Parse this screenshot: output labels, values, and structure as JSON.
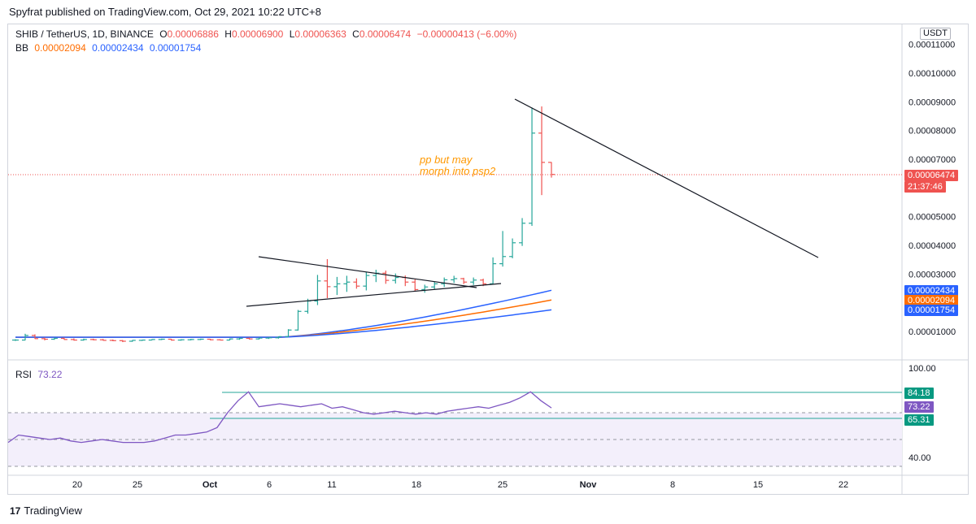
{
  "header": {
    "published": "Spyfrat published on TradingView.com, Oct 29, 2021 10:22 UTC+8"
  },
  "legend": {
    "symbol": "SHIB / TetherUS, 1D, BINANCE",
    "o_label": "O",
    "o_value": "0.00006886",
    "h_label": "H",
    "h_value": "0.00006900",
    "l_label": "L",
    "l_value": "0.00006363",
    "c_label": "C",
    "c_value": "0.00006474",
    "change": "−0.00000413 (−6.00%)",
    "bb_label": "BB",
    "bb_values": [
      "0.00002094",
      "0.00002434",
      "0.00001754"
    ]
  },
  "rsi_legend": {
    "label": "RSI",
    "value": "73.22"
  },
  "price_axis": {
    "currency": "USDT",
    "ticks": [
      "0.00011000",
      "0.00010000",
      "0.00009000",
      "0.00008000",
      "0.00007000",
      "0.00005000",
      "0.00004000",
      "0.00003000",
      "0.00001000"
    ],
    "last_price": "0.00006474",
    "countdown": "21:37:46",
    "bb_upper": "0.00002434",
    "bb_basis": "0.00002094",
    "bb_lower": "0.00001754"
  },
  "rsi_axis": {
    "ticks": [
      "100.00",
      "40.00"
    ],
    "labels": [
      "84.18",
      "73.22",
      "65.31"
    ]
  },
  "time_axis": [
    "20",
    "25",
    "Oct",
    "6",
    "11",
    "18",
    "25",
    "Nov",
    "8",
    "15",
    "22"
  ],
  "annotation": {
    "line1": "pp but may",
    "line2": "morph into psp2"
  },
  "footer": {
    "brand": "TradingView"
  },
  "colors": {
    "up": "#26a69a",
    "down": "#ef5350",
    "bb_basis": "#ff6d00",
    "bb_band": "#2962ff",
    "rsi": "#7e57c2",
    "annotation": "#ff9800",
    "price_line": "#ef5350"
  },
  "chart_data": {
    "type": "candlestick",
    "title": "SHIB / TetherUS, 1D, BINANCE",
    "timeframe": "1D",
    "approx_dates": "mid Sep 2021 – Oct 28 2021",
    "ohlc": [
      [
        7e-06,
        7.3e-06,
        6.7e-06,
        7e-06
      ],
      [
        7e-06,
        9.2e-06,
        6.9e-06,
        8.6e-06
      ],
      [
        8.6e-06,
        9e-06,
        7.4e-06,
        7.5e-06
      ],
      [
        7.5e-06,
        7.9e-06,
        6.9e-06,
        7.3e-06
      ],
      [
        7.3e-06,
        7.9e-06,
        7.1e-06,
        7.6e-06
      ],
      [
        7.6e-06,
        7.9e-06,
        7.1e-06,
        7.2e-06
      ],
      [
        7.2e-06,
        7.6e-06,
        6.8e-06,
        7e-06
      ],
      [
        7e-06,
        7.5e-06,
        6.8e-06,
        7.2e-06
      ],
      [
        7.2e-06,
        7.5e-06,
        6.9e-06,
        7.1e-06
      ],
      [
        7.1e-06,
        7.4e-06,
        6.8e-06,
        6.9e-06
      ],
      [
        6.9e-06,
        7.2e-06,
        6.6e-06,
        6.8e-06
      ],
      [
        6.8e-06,
        7e-06,
        6.3e-06,
        6.6e-06
      ],
      [
        6.6e-06,
        7e-06,
        6.4e-06,
        6.9e-06
      ],
      [
        6.9e-06,
        7.1e-06,
        6.7e-06,
        7e-06
      ],
      [
        7e-06,
        7.3e-06,
        6.9e-06,
        7.2e-06
      ],
      [
        7.2e-06,
        7.5e-06,
        7e-06,
        7.3e-06
      ],
      [
        7.3e-06,
        7.4e-06,
        6.8e-06,
        7e-06
      ],
      [
        7e-06,
        7.3e-06,
        6.8e-06,
        7.1e-06
      ],
      [
        7.1e-06,
        7.4e-06,
        6.9e-06,
        7.2e-06
      ],
      [
        7.2e-06,
        7.5e-06,
        7e-06,
        7.3e-06
      ],
      [
        7.3e-06,
        7.4e-06,
        6.9e-06,
        7.1e-06
      ],
      [
        7.1e-06,
        7.3e-06,
        6.9e-06,
        7e-06
      ],
      [
        7e-06,
        7.6e-06,
        6.9e-06,
        7.4e-06
      ],
      [
        7.4e-06,
        7.8e-06,
        7.1e-06,
        7.6e-06
      ],
      [
        7.6e-06,
        7.9e-06,
        7.2e-06,
        7.4e-06
      ],
      [
        7.4e-06,
        7.8e-06,
        7.2e-06,
        7.7e-06
      ],
      [
        7.7e-06,
        8e-06,
        7.4e-06,
        7.8e-06
      ],
      [
        7.8e-06,
        8.3e-06,
        7.5e-06,
        8.2e-06
      ],
      [
        8.2e-06,
        1.08e-05,
        8e-06,
        1.05e-05
      ],
      [
        1.05e-05,
        1.75e-05,
        1.03e-05,
        1.7e-05
      ],
      [
        1.7e-05,
        2.14e-05,
        1.62e-05,
        2.06e-05
      ],
      [
        2.06e-05,
        2.97e-05,
        1.92e-05,
        2.76e-05
      ],
      [
        2.76e-05,
        3.52e-05,
        2.16e-05,
        2.56e-05
      ],
      [
        2.56e-05,
        2.9e-05,
        2.27e-05,
        2.66e-05
      ],
      [
        2.66e-05,
        2.94e-05,
        2.38e-05,
        2.72e-05
      ],
      [
        2.72e-05,
        2.85e-05,
        2.49e-05,
        2.58e-05
      ],
      [
        2.58e-05,
        3.07e-05,
        2.43e-05,
        2.95e-05
      ],
      [
        2.95e-05,
        3.15e-05,
        2.72e-05,
        3.03e-05
      ],
      [
        3.03e-05,
        3.12e-05,
        2.66e-05,
        2.78e-05
      ],
      [
        2.78e-05,
        3.02e-05,
        2.67e-05,
        2.88e-05
      ],
      [
        2.88e-05,
        2.95e-05,
        2.58e-05,
        2.72e-05
      ],
      [
        2.72e-05,
        2.82e-05,
        2.41e-05,
        2.46e-05
      ],
      [
        2.46e-05,
        2.63e-05,
        2.35e-05,
        2.55e-05
      ],
      [
        2.55e-05,
        2.74e-05,
        2.46e-05,
        2.66e-05
      ],
      [
        2.66e-05,
        2.88e-05,
        2.55e-05,
        2.8e-05
      ],
      [
        2.8e-05,
        2.94e-05,
        2.69e-05,
        2.84e-05
      ],
      [
        2.84e-05,
        2.87e-05,
        2.65e-05,
        2.72e-05
      ],
      [
        2.72e-05,
        2.88e-05,
        2.62e-05,
        2.79e-05
      ],
      [
        2.79e-05,
        2.84e-05,
        2.58e-05,
        2.66e-05
      ],
      [
        2.66e-05,
        3.58e-05,
        2.63e-05,
        3.36e-05
      ],
      [
        3.36e-05,
        4.5e-05,
        3.26e-05,
        3.61e-05
      ],
      [
        3.61e-05,
        4.24e-05,
        3.55e-05,
        4.09e-05
      ],
      [
        4.09e-05,
        4.95e-05,
        3.98e-05,
        4.77e-05
      ],
      [
        4.77e-05,
        8.8e-05,
        4.68e-05,
        7.91e-05
      ],
      [
        7.91e-05,
        8.84e-05,
        5.75e-05,
        6.89e-05
      ],
      [
        6.89e-05,
        6.9e-05,
        6.36e-05,
        6.47e-05
      ]
    ],
    "bollinger": {
      "upper_last": 2.434e-05,
      "basis_last": 2.094e-05,
      "lower_last": 1.754e-05
    },
    "rsi": {
      "last": 73.22,
      "levels": [
        84.18,
        65.31
      ],
      "range": [
        0,
        100
      ]
    },
    "drawings": [
      {
        "type": "trendline",
        "from": [
          3.58e-05,
          "Oct 6"
        ],
        "to": [
          2.55e-05,
          "Oct 22"
        ]
      },
      {
        "type": "trendline",
        "from": [
          2e-05,
          "Oct 4"
        ],
        "to": [
          2.66e-05,
          "Oct 24"
        ]
      },
      {
        "type": "trendline",
        "from": [
          9.1e-05,
          "Oct 27"
        ],
        "to": [
          3.6e-05,
          "Nov 19"
        ]
      }
    ],
    "ylim": [
      0,
      0.000115
    ]
  }
}
